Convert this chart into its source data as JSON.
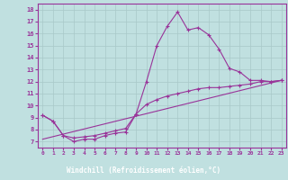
{
  "x_ticks": [
    0,
    1,
    2,
    3,
    4,
    5,
    6,
    7,
    8,
    9,
    10,
    11,
    12,
    13,
    14,
    15,
    16,
    17,
    18,
    19,
    20,
    21,
    22,
    23
  ],
  "xlabel": "Windchill (Refroidissement éolien,°C)",
  "ylabel_ticks": [
    7,
    8,
    9,
    10,
    11,
    12,
    13,
    14,
    15,
    16,
    17,
    18
  ],
  "ylim": [
    6.5,
    18.5
  ],
  "xlim": [
    -0.5,
    23.5
  ],
  "background_color": "#c0e0e0",
  "line_color": "#993399",
  "xlabel_bar_color": "#7755aa",
  "grid_color": "#a8c8c8",
  "line1": {
    "x": [
      0,
      1,
      2,
      3,
      4,
      5,
      6,
      7,
      8,
      9,
      10,
      11,
      12,
      13,
      14,
      15,
      16,
      17,
      18,
      19,
      20,
      21,
      22,
      23
    ],
    "y": [
      9.2,
      8.7,
      7.5,
      7.0,
      7.2,
      7.2,
      7.5,
      7.7,
      7.8,
      9.3,
      12.0,
      15.0,
      16.6,
      17.8,
      16.3,
      16.5,
      15.9,
      14.7,
      13.1,
      12.8,
      12.1,
      12.1,
      12.0,
      12.1
    ]
  },
  "line2": {
    "x": [
      0,
      1,
      2,
      3,
      4,
      5,
      6,
      7,
      8,
      9,
      10,
      11,
      12,
      13,
      14,
      15,
      16,
      17,
      18,
      19,
      20,
      21,
      22,
      23
    ],
    "y": [
      9.2,
      8.7,
      7.5,
      7.3,
      7.4,
      7.5,
      7.7,
      7.9,
      8.1,
      9.3,
      10.1,
      10.5,
      10.8,
      11.0,
      11.2,
      11.4,
      11.5,
      11.5,
      11.6,
      11.7,
      11.8,
      12.0,
      12.0,
      12.1
    ]
  },
  "line3": {
    "x": [
      0,
      23
    ],
    "y": [
      7.2,
      12.1
    ]
  }
}
